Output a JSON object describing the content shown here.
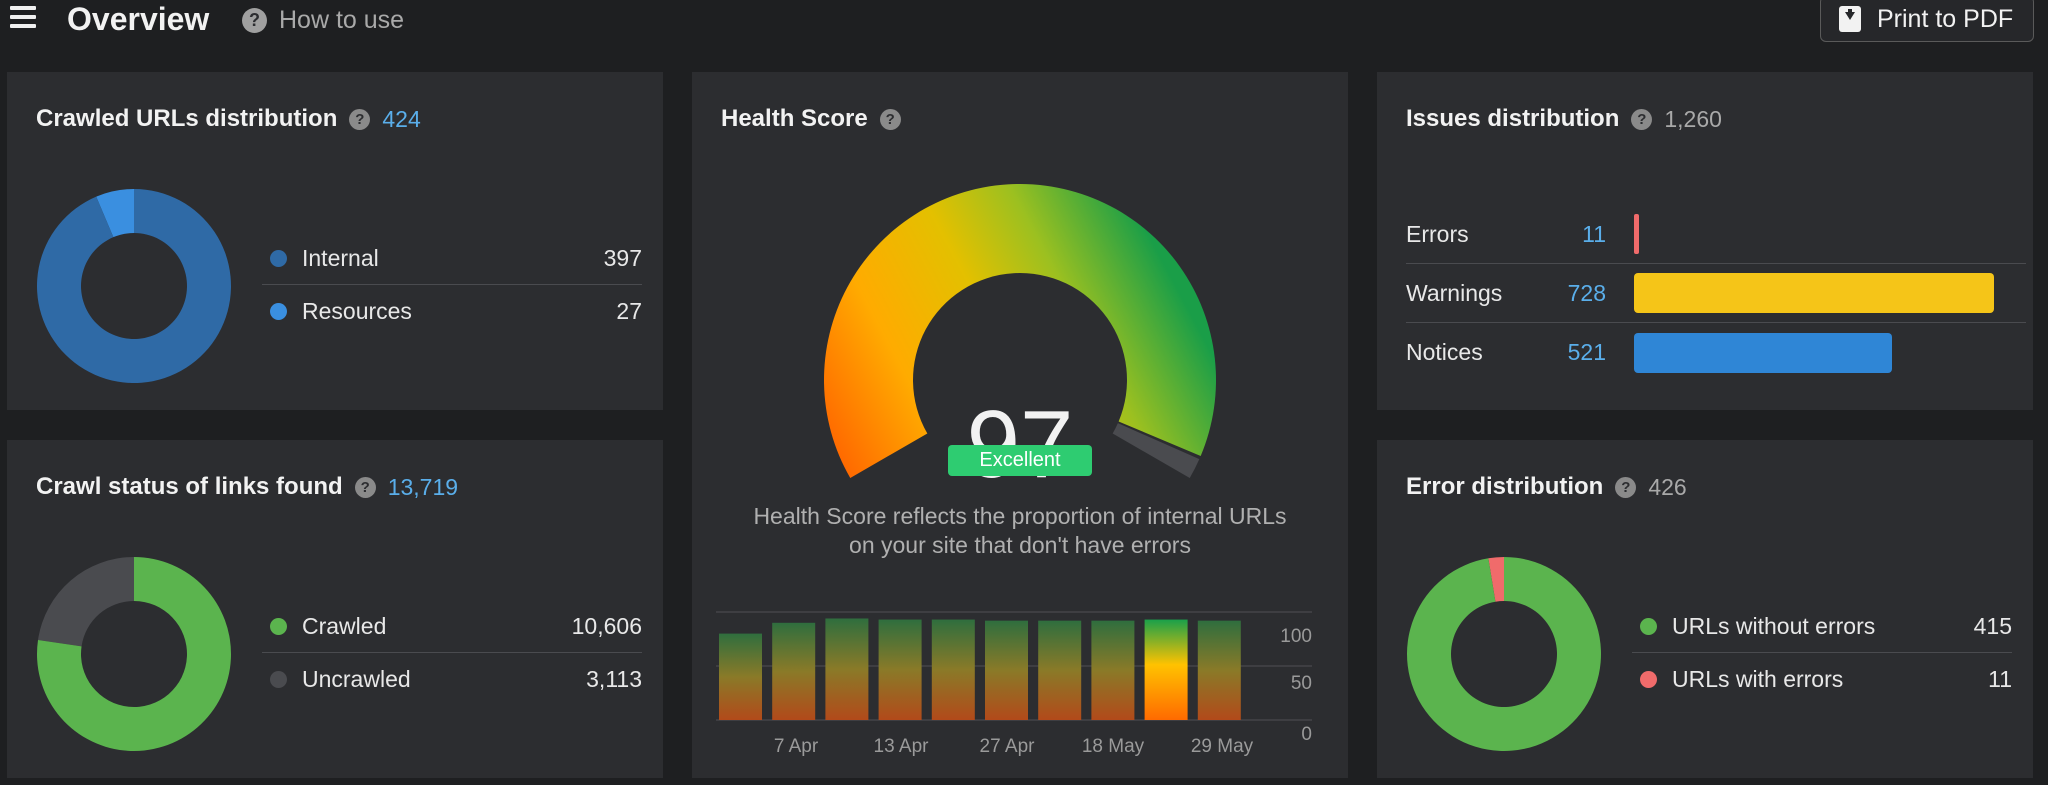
{
  "header": {
    "title": "Overview",
    "how_to_use": "How to use",
    "print_label": "Print to PDF",
    "menu_icon": "hamburger-menu-icon",
    "help_icon": "question-circle-icon",
    "print_icon": "pdf-download-icon"
  },
  "crawled_urls": {
    "title": "Crawled URLs distribution",
    "total": "424",
    "items": [
      {
        "label": "Internal",
        "value": "397",
        "color": "#2f6aa6",
        "count": 397
      },
      {
        "label": "Resources",
        "value": "27",
        "color": "#3a8fe0",
        "count": 27
      }
    ]
  },
  "crawl_status": {
    "title": "Crawl status of links found",
    "total": "13,719",
    "items": [
      {
        "label": "Crawled",
        "value": "10,606",
        "color": "#5bb44e",
        "count": 10606
      },
      {
        "label": "Uncrawled",
        "value": "3,113",
        "color": "#4a4b4f",
        "count": 3113
      }
    ]
  },
  "health_score": {
    "title": "Health Score",
    "score": "97",
    "score_value": 97,
    "rating": "Excellent",
    "description_line1": "Health Score reflects the proportion of internal URLs",
    "description_line2": "on your site that don't have errors",
    "history": [
      80,
      90,
      94,
      93,
      93,
      92,
      92,
      92,
      93,
      92
    ],
    "history_highlight_index": 8,
    "x_ticks": [
      "7 Apr",
      "13 Apr",
      "27 Apr",
      "18 May",
      "29 May"
    ],
    "y_ticks": [
      "100",
      "50",
      "0"
    ]
  },
  "issues": {
    "title": "Issues distribution",
    "total": "1,260",
    "items": [
      {
        "label": "Errors",
        "value": "11",
        "count": 11,
        "color": "#f06b6b"
      },
      {
        "label": "Warnings",
        "value": "728",
        "count": 728,
        "color": "#f5c518"
      },
      {
        "label": "Notices",
        "value": "521",
        "count": 521,
        "color": "#2f86d6"
      }
    ]
  },
  "error_distribution": {
    "title": "Error distribution",
    "total": "426",
    "items": [
      {
        "label": "URLs without errors",
        "value": "415",
        "color": "#5bb44e",
        "count": 415
      },
      {
        "label": "URLs with errors",
        "value": "11",
        "color": "#f06b6b",
        "count": 11
      }
    ]
  }
}
